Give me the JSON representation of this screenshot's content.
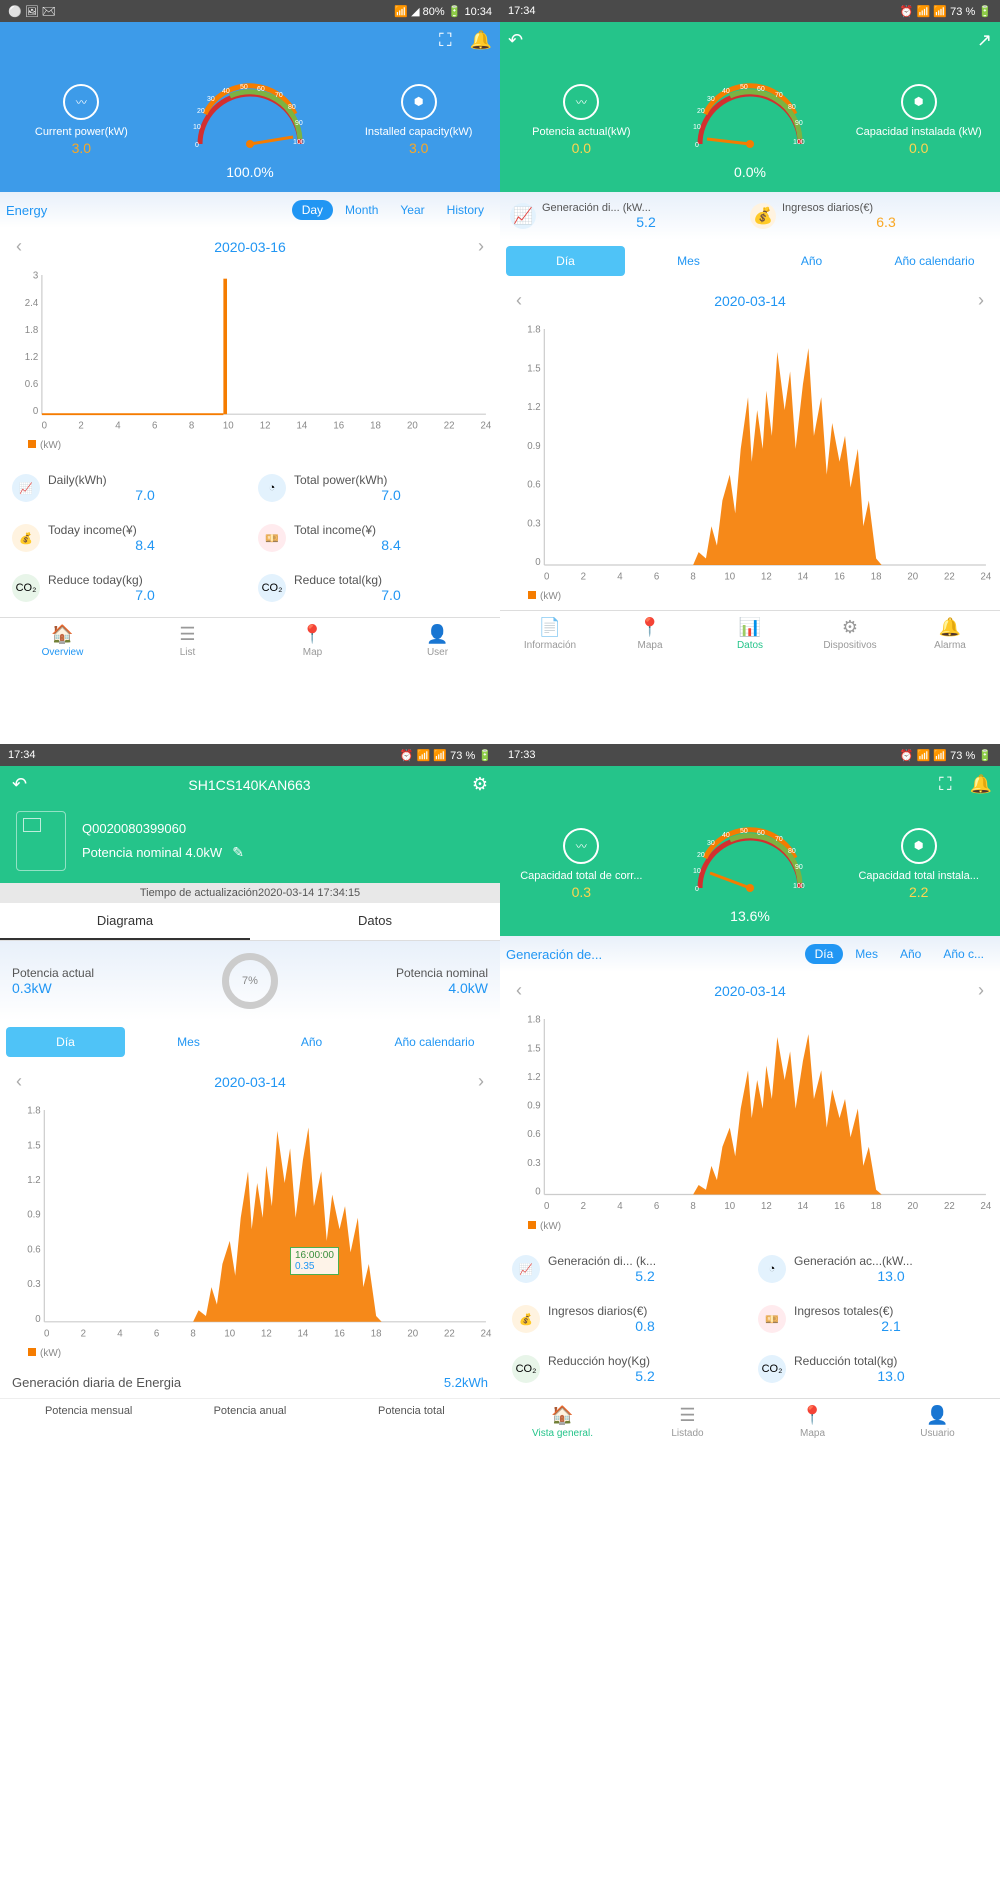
{
  "colors": {
    "blue": "#3d9be9",
    "green": "#25c48a",
    "orange": "#f57c00",
    "link": "#2196f3"
  },
  "p1": {
    "status": {
      "left": "⚪ 🖼 ✉",
      "right": "📶 ◢ 80% 🔋 10:34"
    },
    "gauge": {
      "pct": "100.0%",
      "left_label": "Current power(kW)",
      "left_val": "3.0",
      "right_label": "Installed capacity(kW)",
      "right_val": "3.0",
      "ticks": [
        0,
        10,
        20,
        30,
        40,
        50,
        60,
        70,
        80,
        90,
        100
      ]
    },
    "energy_label": "Energy",
    "periods": [
      "Day",
      "Month",
      "Year",
      "History"
    ],
    "period_active": 0,
    "date": "2020-03-16",
    "chart": {
      "y_ticks": [
        0,
        0.6,
        1.2,
        1.8,
        2.4,
        3
      ],
      "x_ticks": [
        0,
        2,
        4,
        6,
        8,
        10,
        12,
        14,
        16,
        18,
        20,
        22,
        24
      ],
      "spike_x": 10,
      "spike_h": 3,
      "legend": "(kW)"
    },
    "stats": [
      {
        "icon": "📈",
        "bg": "#e3f2fd",
        "label": "Daily(kWh)",
        "val": "7.0"
      },
      {
        "icon": "◔",
        "bg": "#e3f2fd",
        "label": "Total power(kWh)",
        "val": "7.0"
      },
      {
        "icon": "💰",
        "bg": "#fff3e0",
        "label": "Today income(¥)",
        "val": "8.4"
      },
      {
        "icon": "💴",
        "bg": "#ffebee",
        "label": "Total income(¥)",
        "val": "8.4"
      },
      {
        "icon": "CO₂",
        "bg": "#e8f5e9",
        "label": "Reduce today(kg)",
        "val": "7.0"
      },
      {
        "icon": "CO₂",
        "bg": "#e3f2fd",
        "label": "Reduce total(kg)",
        "val": "7.0"
      }
    ],
    "nav": [
      {
        "i": "🏠",
        "l": "Overview"
      },
      {
        "i": "☰",
        "l": "List"
      },
      {
        "i": "📍",
        "l": "Map"
      },
      {
        "i": "👤",
        "l": "User"
      }
    ],
    "nav_active": 0
  },
  "p2": {
    "status": {
      "left": "17:34",
      "right": "⏰ 📶 📶 73 % 🔋"
    },
    "gauge": {
      "pct": "0.0%",
      "left_label": "Potencia actual(kW)",
      "left_val": "0.0",
      "right_label": "Capacidad instalada (kW)",
      "right_val": "0.0"
    },
    "daily": [
      {
        "icon": "📈",
        "bg": "#e3f2fd",
        "label": "Generación di... (kW...",
        "val": "5.2",
        "vc": "val-blue"
      },
      {
        "icon": "💰",
        "bg": "#fff3e0",
        "label": "Ingresos diarios(€)",
        "val": "6.3",
        "vc": "val-orange"
      }
    ],
    "periods": [
      "Día",
      "Mes",
      "Año",
      "Año calendario"
    ],
    "period_active": 0,
    "date": "2020-03-14",
    "chart": {
      "y_ticks": [
        0,
        0.3,
        0.6,
        0.9,
        1.2,
        1.5,
        1.8
      ],
      "x_ticks": [
        0,
        2,
        4,
        6,
        8,
        10,
        12,
        14,
        16,
        18,
        20,
        22,
        24
      ],
      "legend": "(kW)"
    },
    "nav": [
      {
        "i": "📄",
        "l": "Información"
      },
      {
        "i": "📍",
        "l": "Mapa"
      },
      {
        "i": "📊",
        "l": "Datos"
      },
      {
        "i": "⚙",
        "l": "Dispositivos"
      },
      {
        "i": "🔔",
        "l": "Alarma"
      }
    ],
    "nav_active": 2
  },
  "p3": {
    "status": {
      "left": "17:34",
      "right": "⏰ 📶 📶 73 % 🔋"
    },
    "title": "SH1CS140KAN663",
    "serial": "Q0020080399060",
    "nominal": "Potencia nominal  4.0kW",
    "update_label": "Tiempo de actualización",
    "update_time": "2020-03-14 17:34:15",
    "tabs": [
      "Diagrama",
      "Datos"
    ],
    "tab_active": 0,
    "power": {
      "left_l": "Potencia actual",
      "left_v": "0.3kW",
      "pct": "7%",
      "right_l": "Potencia nominal",
      "right_v": "4.0kW"
    },
    "periods": [
      "Día",
      "Mes",
      "Año",
      "Año calendario"
    ],
    "period_active": 0,
    "date": "2020-03-14",
    "chart": {
      "y_ticks": [
        0,
        0.3,
        0.6,
        0.9,
        1.2,
        1.5,
        1.8
      ],
      "x_ticks": [
        0,
        2,
        4,
        6,
        8,
        10,
        12,
        14,
        16,
        18,
        20,
        22,
        24
      ],
      "legend": "(kW)",
      "tooltip": {
        "t": "16:00:00",
        "v": "0.35"
      }
    },
    "gen": {
      "label": "Generación diaria de Energia",
      "val": "5.2kWh"
    },
    "pot": [
      {
        "l": "Potencia mensual"
      },
      {
        "l": "Potencia anual"
      },
      {
        "l": "Potencia total"
      }
    ]
  },
  "p4": {
    "status": {
      "left": "17:33",
      "right": "⏰ 📶 📶 73 % 🔋"
    },
    "gauge": {
      "pct": "13.6%",
      "left_label": "Capacidad total de corr...",
      "left_val": "0.3",
      "right_label": "Capacidad total instala...",
      "right_val": "2.2"
    },
    "energy_label": "Generación de...",
    "periods": [
      "Día",
      "Mes",
      "Año",
      "Año c..."
    ],
    "period_active": 0,
    "date": "2020-03-14",
    "chart": {
      "y_ticks": [
        0,
        0.3,
        0.6,
        0.9,
        1.2,
        1.5,
        1.8
      ],
      "x_ticks": [
        0,
        2,
        4,
        6,
        8,
        10,
        12,
        14,
        16,
        18,
        20,
        22,
        24
      ],
      "legend": "(kW)"
    },
    "stats": [
      {
        "icon": "📈",
        "bg": "#e3f2fd",
        "label": "Generación di... (k...",
        "val": "5.2"
      },
      {
        "icon": "◔",
        "bg": "#e3f2fd",
        "label": "Generación ac...(kW...",
        "val": "13.0"
      },
      {
        "icon": "💰",
        "bg": "#fff3e0",
        "label": "Ingresos diarios(€)",
        "val": "0.8"
      },
      {
        "icon": "💴",
        "bg": "#ffebee",
        "label": "Ingresos totales(€)",
        "val": "2.1"
      },
      {
        "icon": "CO₂",
        "bg": "#e8f5e9",
        "label": "Reducción hoy(Kg)",
        "val": "5.2"
      },
      {
        "icon": "CO₂",
        "bg": "#e3f2fd",
        "label": "Reducción total(kg)",
        "val": "13.0"
      }
    ],
    "nav": [
      {
        "i": "🏠",
        "l": "Vista general."
      },
      {
        "i": "☰",
        "l": "Listado"
      },
      {
        "i": "📍",
        "l": "Mapa"
      },
      {
        "i": "👤",
        "l": "Usuario"
      }
    ],
    "nav_active": 0
  }
}
